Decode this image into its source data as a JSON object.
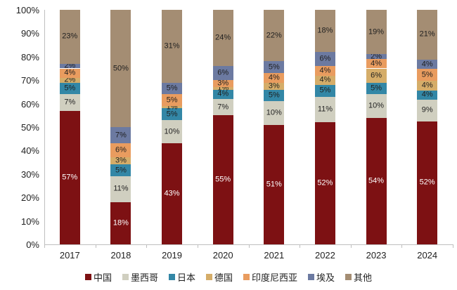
{
  "chart_data": {
    "type": "bar",
    "variant": "stacked-100-percent",
    "title": "",
    "xlabel": "",
    "ylabel": "",
    "grid": false,
    "legend_position": "bottom",
    "categories": [
      "2017",
      "2018",
      "2019",
      "2020",
      "2021",
      "2022",
      "2023",
      "2024"
    ],
    "y_axis": {
      "min": 0,
      "max": 100,
      "ticks": [
        "0%",
        "10%",
        "20%",
        "30%",
        "40%",
        "50%",
        "60%",
        "70%",
        "80%",
        "90%",
        "100%"
      ]
    },
    "series": [
      {
        "name": "中国",
        "color": "#7d1113",
        "label_color": "#ffffff",
        "values": [
          57,
          18,
          43,
          55,
          51,
          52,
          54,
          52
        ]
      },
      {
        "name": "墨西哥",
        "color": "#d0cfc0",
        "label_color": "#1f1f1f",
        "values": [
          7,
          11,
          10,
          7,
          10,
          11,
          10,
          9
        ]
      },
      {
        "name": "日本",
        "color": "#3387a6",
        "label_color": "#1f1f1f",
        "values": [
          5,
          5,
          5,
          4,
          5,
          5,
          5,
          4
        ]
      },
      {
        "name": "德国",
        "color": "#d5ad69",
        "label_color": "#1f1f1f",
        "values": [
          2,
          3,
          1,
          1,
          3,
          4,
          6,
          4
        ]
      },
      {
        "name": "印度尼西亚",
        "color": "#e99c5f",
        "label_color": "#1f1f1f",
        "values": [
          4,
          6,
          5,
          3,
          4,
          4,
          4,
          5
        ]
      },
      {
        "name": "埃及",
        "color": "#6c7aa1",
        "label_color": "#1f1f1f",
        "values": [
          2,
          7,
          5,
          6,
          5,
          6,
          2,
          4
        ]
      },
      {
        "name": "其他",
        "color": "#a48d73",
        "label_color": "#1f1f1f",
        "values": [
          23,
          50,
          31,
          24,
          22,
          18,
          19,
          21
        ]
      }
    ],
    "axis_color": "#bfbfbf",
    "text_color": "#1f1f1f",
    "label_suffix": "%"
  }
}
